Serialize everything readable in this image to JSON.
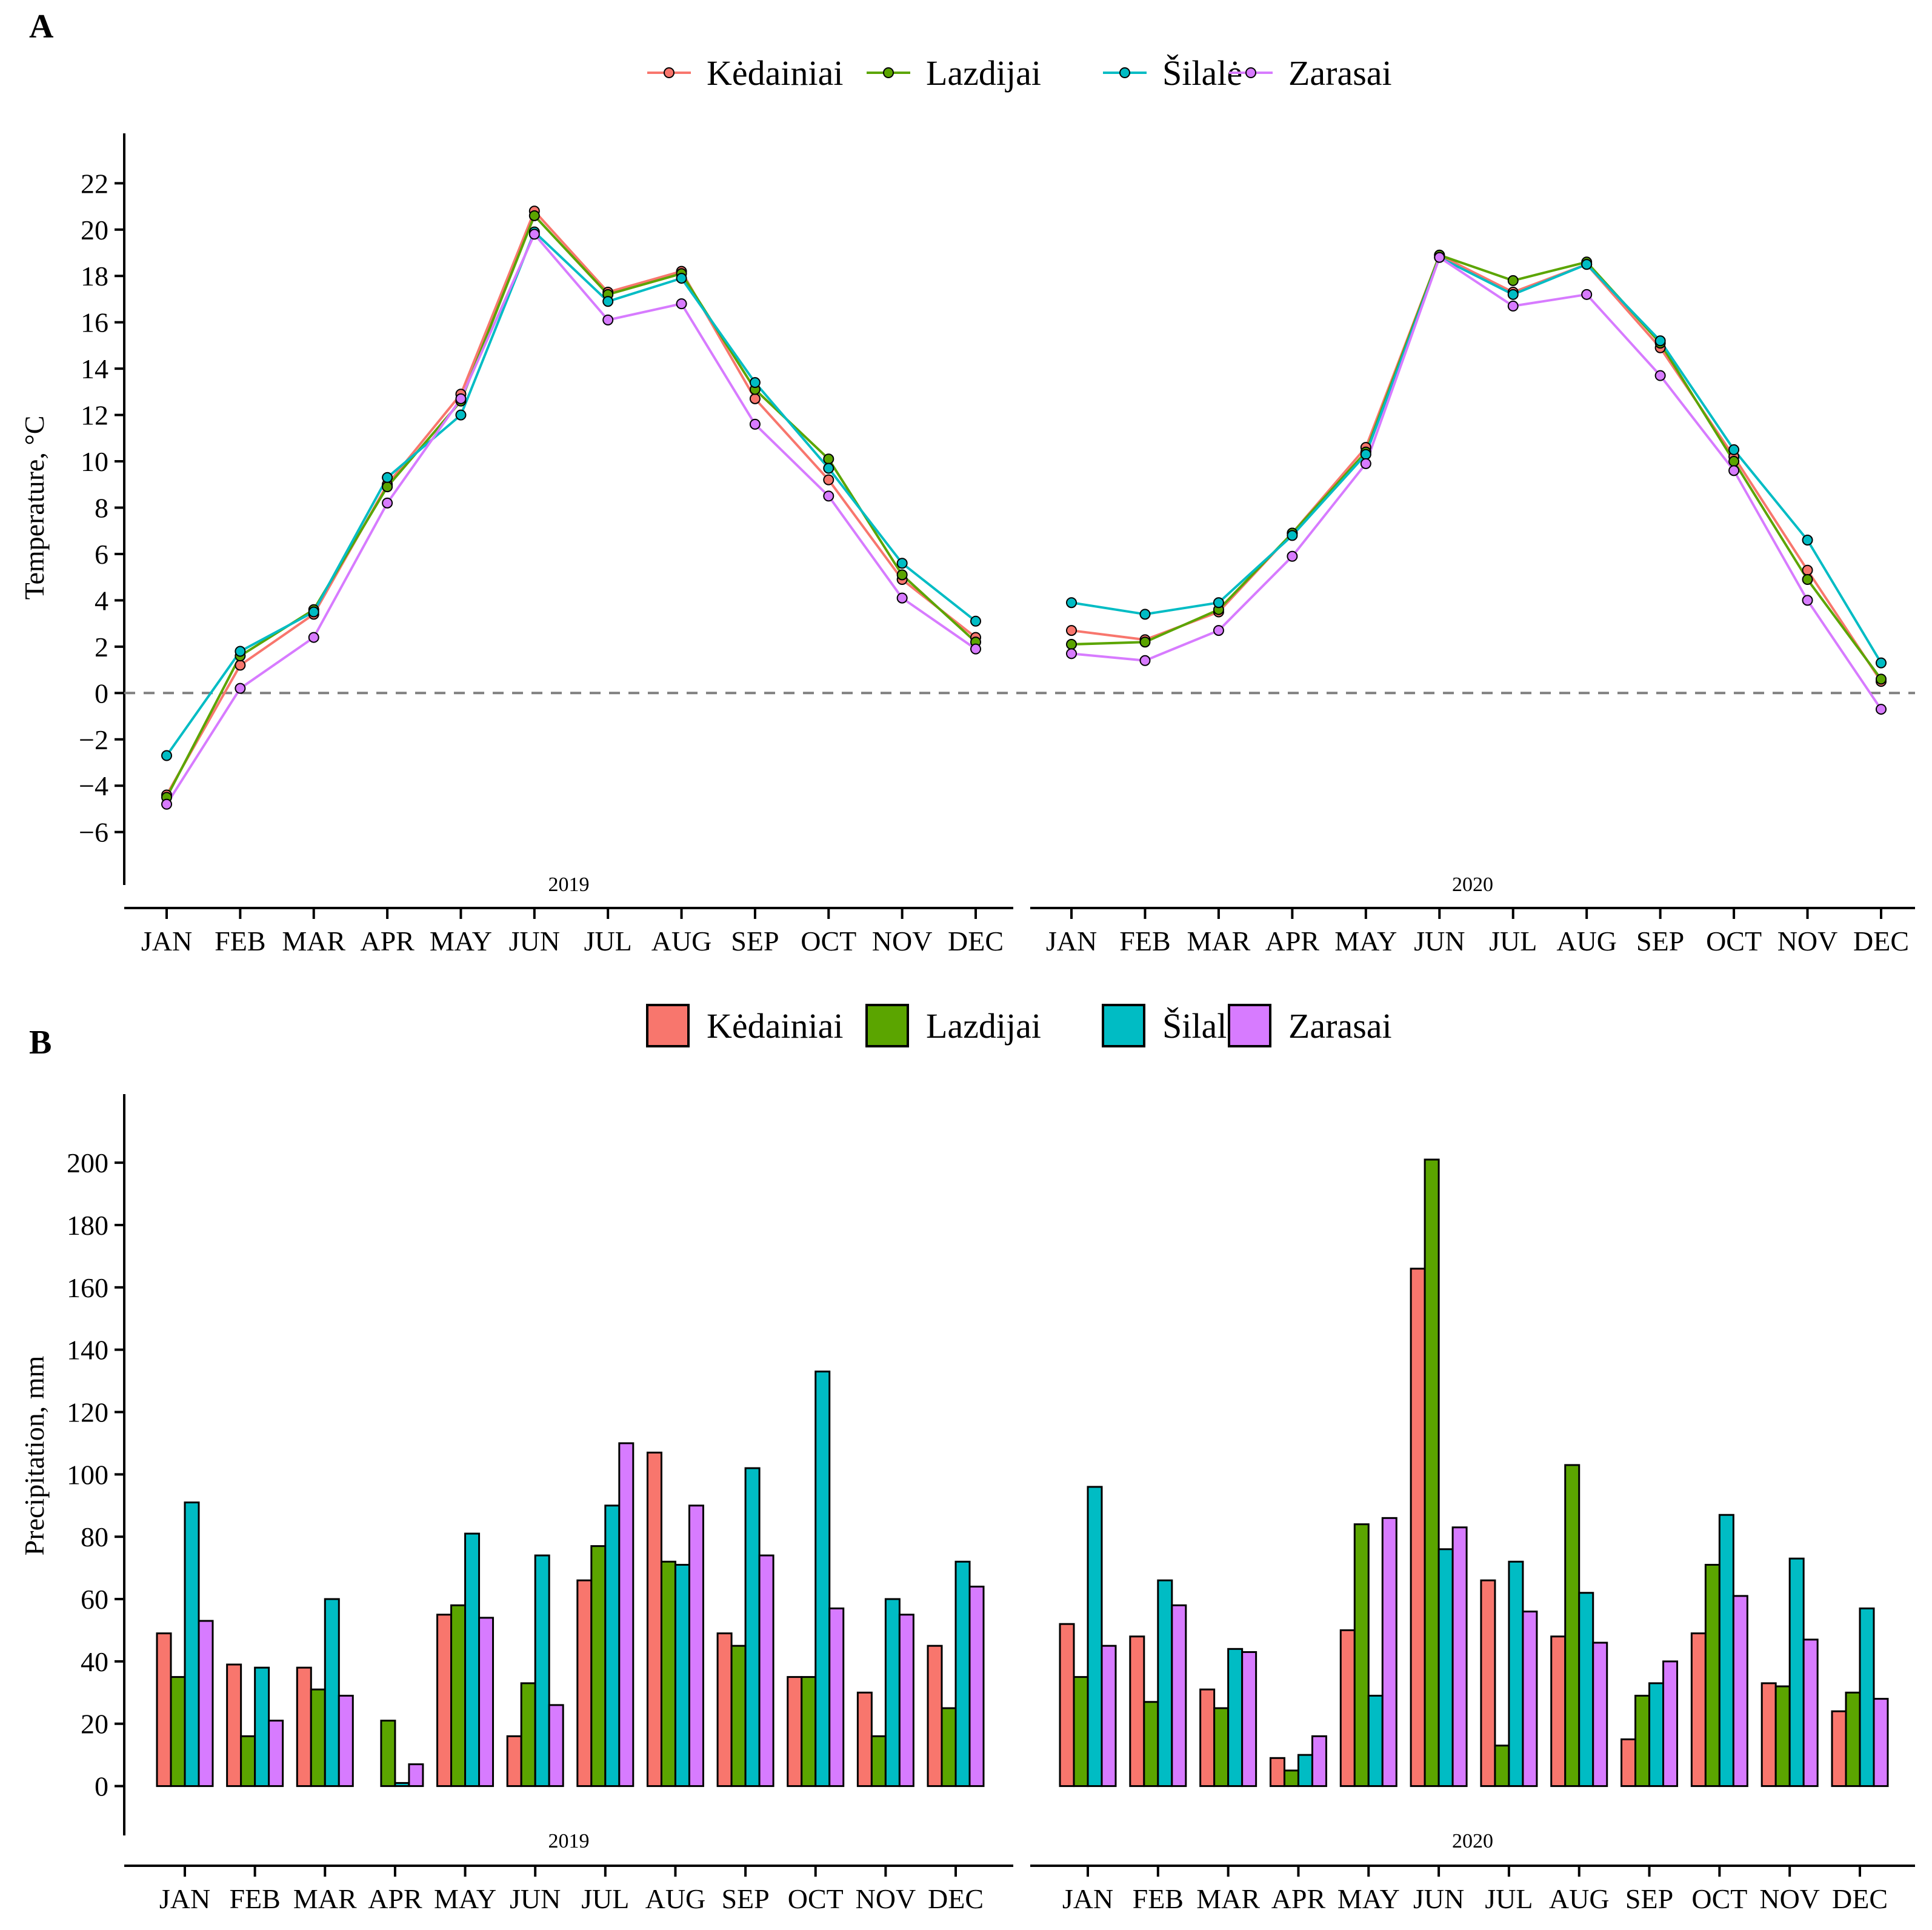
{
  "colors": {
    "Kėdainiai": "#F8766D",
    "Lazdijai": "#5BA500",
    "Šilalė": "#00BCC4",
    "Zarasai": "#D77BFF"
  },
  "chart_data": [
    {
      "panel": "A",
      "type": "line",
      "ylabel": "Temperature, °C",
      "ylim": [
        -7.5,
        23.5
      ],
      "yticks": [
        -6,
        -4,
        -2,
        0,
        2,
        4,
        6,
        8,
        10,
        12,
        14,
        16,
        18,
        20,
        22
      ],
      "ytick_labels": [
        "−6",
        "−4",
        "−2",
        "0",
        "2",
        "4",
        "6",
        "8",
        "10",
        "12",
        "14",
        "16",
        "18",
        "20",
        "22"
      ],
      "reference_line": 0,
      "legend": [
        "Kėdainiai",
        "Lazdijai",
        "Šilalė",
        "Zarasai"
      ],
      "facets": [
        "2019",
        "2020"
      ],
      "months": [
        "JAN",
        "FEB",
        "MAR",
        "APR",
        "MAY",
        "JUN",
        "JUL",
        "AUG",
        "SEP",
        "OCT",
        "NOV",
        "DEC"
      ],
      "series": [
        {
          "name": "Kėdainiai",
          "values": {
            "2019": [
              -4.4,
              1.2,
              3.4,
              9.0,
              12.9,
              20.8,
              17.3,
              18.2,
              12.7,
              9.2,
              4.9,
              2.4
            ],
            "2020": [
              2.7,
              2.3,
              3.5,
              6.9,
              10.6,
              18.9,
              17.3,
              18.5,
              14.9,
              10.2,
              5.3,
              0.5
            ]
          }
        },
        {
          "name": "Lazdijai",
          "values": {
            "2019": [
              -4.5,
              1.6,
              3.6,
              8.9,
              12.6,
              20.6,
              17.2,
              18.1,
              13.1,
              10.1,
              5.1,
              2.2
            ],
            "2020": [
              2.1,
              2.2,
              3.6,
              6.9,
              10.4,
              18.9,
              17.8,
              18.6,
              15.1,
              10.0,
              4.9,
              0.6
            ]
          }
        },
        {
          "name": "Šilalė",
          "values": {
            "2019": [
              -2.7,
              1.8,
              3.5,
              9.3,
              12.0,
              19.9,
              16.9,
              17.9,
              13.4,
              9.7,
              5.6,
              3.1
            ],
            "2020": [
              3.9,
              3.4,
              3.9,
              6.8,
              10.3,
              18.8,
              17.2,
              18.5,
              15.2,
              10.5,
              6.6,
              1.3
            ]
          }
        },
        {
          "name": "Zarasai",
          "values": {
            "2019": [
              -4.8,
              0.2,
              2.4,
              8.2,
              12.7,
              19.8,
              16.1,
              16.8,
              11.6,
              8.5,
              4.1,
              1.9
            ],
            "2020": [
              1.7,
              1.4,
              2.7,
              5.9,
              9.9,
              18.8,
              16.7,
              17.2,
              13.7,
              9.6,
              4.0,
              -0.7
            ]
          }
        }
      ]
    },
    {
      "panel": "B",
      "type": "bar",
      "ylabel": "Precipitation, mm",
      "ylim": [
        -10,
        222
      ],
      "yticks": [
        0,
        20,
        40,
        60,
        80,
        100,
        120,
        140,
        160,
        180,
        200
      ],
      "ytick_labels": [
        "0",
        "20",
        "40",
        "60",
        "80",
        "100",
        "120",
        "140",
        "160",
        "180",
        "200"
      ],
      "legend": [
        "Kėdainiai",
        "Lazdijai",
        "Šilalė",
        "Zarasai"
      ],
      "facets": [
        "2019",
        "2020"
      ],
      "months": [
        "JAN",
        "FEB",
        "MAR",
        "APR",
        "MAY",
        "JUN",
        "JUL",
        "AUG",
        "SEP",
        "OCT",
        "NOV",
        "DEC"
      ],
      "series": [
        {
          "name": "Kėdainiai",
          "values": {
            "2019": [
              49,
              39,
              38,
              0,
              55,
              16,
              66,
              107,
              49,
              35,
              30,
              45
            ],
            "2020": [
              52,
              48,
              31,
              9,
              50,
              166,
              66,
              48,
              15,
              49,
              33,
              24
            ]
          }
        },
        {
          "name": "Lazdijai",
          "values": {
            "2019": [
              35,
              16,
              31,
              21,
              58,
              33,
              77,
              72,
              45,
              35,
              16,
              25
            ],
            "2020": [
              35,
              27,
              25,
              5,
              84,
              201,
              13,
              103,
              29,
              71,
              32,
              30
            ]
          }
        },
        {
          "name": "Šilalė",
          "values": {
            "2019": [
              91,
              38,
              60,
              1,
              81,
              74,
              90,
              71,
              102,
              133,
              60,
              72
            ],
            "2020": [
              96,
              66,
              44,
              10,
              29,
              76,
              72,
              62,
              33,
              87,
              73,
              57
            ]
          }
        },
        {
          "name": "Zarasai",
          "values": {
            "2019": [
              53,
              21,
              29,
              7,
              54,
              26,
              110,
              90,
              74,
              57,
              55,
              64
            ],
            "2020": [
              45,
              58,
              43,
              16,
              86,
              83,
              56,
              46,
              40,
              61,
              47,
              28
            ]
          }
        }
      ]
    }
  ]
}
